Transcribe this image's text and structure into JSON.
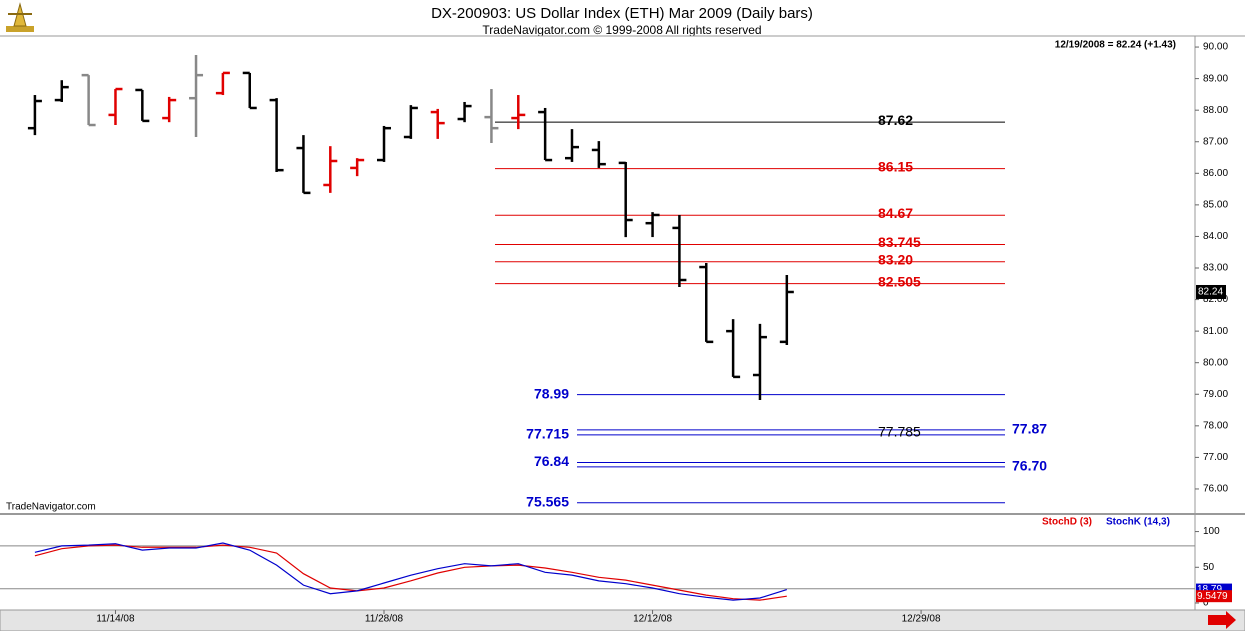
{
  "chart_data": [
    {
      "type": "ohlc",
      "title": "DX-200903:  US Dollar Index (ETH) Mar 2009  (Daily bars)",
      "subtitle": "TradeNavigator.com © 1999-2008 All rights reserved",
      "info": "12/19/2008 = 82.24 (+1.43)",
      "source": "TradeNavigator.com",
      "x": [
        0,
        1,
        2,
        3,
        4,
        5,
        6,
        7,
        8,
        9,
        10,
        11,
        12,
        13,
        14,
        15,
        16,
        17,
        18,
        19,
        20,
        21,
        22,
        23,
        24,
        25,
        26,
        27,
        28
      ],
      "open": [
        87.43,
        88.32,
        89.11,
        87.85,
        88.64,
        87.75,
        88.38,
        88.54,
        89.18,
        88.32,
        86.8,
        85.63,
        86.17,
        86.42,
        87.15,
        87.94,
        87.72,
        87.78,
        87.75,
        87.94,
        86.48,
        86.74,
        86.33,
        84.42,
        84.27,
        83.03,
        81.0,
        79.61,
        80.66
      ],
      "high": [
        88.48,
        88.95,
        89.11,
        88.67,
        88.64,
        88.42,
        89.75,
        89.18,
        89.18,
        88.38,
        87.21,
        86.86,
        86.48,
        87.5,
        88.16,
        88.04,
        88.26,
        88.67,
        88.48,
        88.07,
        87.4,
        87.02,
        86.36,
        84.77,
        84.68,
        83.16,
        81.38,
        81.23,
        82.78
      ],
      "low": [
        87.21,
        88.26,
        87.53,
        87.53,
        87.66,
        87.62,
        87.15,
        88.48,
        88.07,
        86.04,
        85.38,
        85.38,
        85.91,
        86.36,
        87.09,
        87.09,
        87.62,
        86.96,
        87.4,
        86.42,
        86.36,
        86.17,
        83.98,
        83.98,
        82.4,
        80.66,
        79.55,
        78.82,
        80.56
      ],
      "close": [
        88.29,
        88.73,
        87.53,
        88.67,
        87.66,
        88.32,
        89.11,
        89.18,
        88.07,
        86.1,
        85.38,
        86.39,
        86.42,
        87.43,
        88.07,
        87.59,
        88.13,
        87.43,
        87.85,
        86.42,
        86.83,
        86.29,
        84.52,
        84.68,
        82.62,
        80.66,
        79.55,
        80.81,
        82.24
      ],
      "colors": [
        "#000",
        "#000",
        "#888",
        "#e00000",
        "#000",
        "#e00000",
        "#888",
        "#e00000",
        "#000",
        "#000",
        "#000",
        "#e00000",
        "#e00000",
        "#000",
        "#000",
        "#e00000",
        "#000",
        "#888",
        "#e00000",
        "#000",
        "#000",
        "#000",
        "#000",
        "#000",
        "#000",
        "#000",
        "#000",
        "#000",
        "#000"
      ],
      "xlim": [
        -1.3,
        43.2
      ],
      "xticks": [
        {
          "value": 3,
          "label": "11/14/08"
        },
        {
          "value": 13,
          "label": "11/28/08"
        },
        {
          "value": 23,
          "label": "12/12/08"
        },
        {
          "value": 33,
          "label": "12/29/08"
        }
      ],
      "ylim": [
        75.27,
        90.35
      ],
      "yticks": [
        {
          "value": 76,
          "label": "76.00"
        },
        {
          "value": 77,
          "label": "77.00"
        },
        {
          "value": 78,
          "label": "78.00"
        },
        {
          "value": 79,
          "label": "79.00"
        },
        {
          "value": 80,
          "label": "80.00"
        },
        {
          "value": 81,
          "label": "81.00"
        },
        {
          "value": 82,
          "label": "82.00"
        },
        {
          "value": 83,
          "label": "83.00"
        },
        {
          "value": 84,
          "label": "84.00"
        },
        {
          "value": 85,
          "label": "85.00"
        },
        {
          "value": 86,
          "label": "86.00"
        },
        {
          "value": 87,
          "label": "87.00"
        },
        {
          "value": 88,
          "label": "88.00"
        },
        {
          "value": 89,
          "label": "89.00"
        },
        {
          "value": 90,
          "label": "90.00"
        }
      ],
      "levels": [
        {
          "value": 87.62,
          "color": "#000"
        },
        {
          "value": 86.15,
          "color": "#e00000"
        },
        {
          "value": 84.67,
          "color": "#e00000"
        },
        {
          "value": 83.745,
          "color": "#e00000"
        },
        {
          "value": 83.2,
          "label": "83.20",
          "color": "#e00000"
        },
        {
          "value": 82.505,
          "color": "#e00000"
        }
      ],
      "targets": [
        {
          "value": 78.99,
          "side": "left"
        },
        {
          "value": 77.87,
          "side": "right"
        },
        {
          "value": 77.715,
          "side": "left"
        },
        {
          "value": 76.84,
          "side": "left"
        },
        {
          "value": 76.7,
          "label": "76.70",
          "side": "right"
        },
        {
          "value": 75.565,
          "side": "left"
        }
      ],
      "target_color": "#0000cc",
      "annotations": [
        77.785
      ]
    },
    {
      "type": "stochastic",
      "series": [
        {
          "name": "StochD (3)",
          "color": "#e00000",
          "values": [
            66,
            76,
            80,
            81,
            78,
            78,
            78,
            81,
            78,
            70,
            41,
            21,
            17,
            21,
            31,
            42,
            50,
            52,
            53,
            49,
            43,
            36,
            32,
            25,
            18,
            11,
            6,
            4,
            9.5479
          ]
        },
        {
          "name": "StochK (14,3)",
          "color": "#0000cc",
          "values": [
            71,
            80,
            81,
            83,
            74,
            77,
            77,
            84,
            74,
            53,
            25,
            13,
            17,
            28,
            39,
            48,
            55,
            52,
            55,
            43,
            39,
            31,
            27,
            21,
            13,
            8,
            4,
            7,
            18.79
          ]
        }
      ],
      "ylim": [
        -9.8,
        121.8
      ],
      "yticks": [
        0,
        50,
        100
      ],
      "hlines": [
        20,
        80
      ]
    }
  ]
}
